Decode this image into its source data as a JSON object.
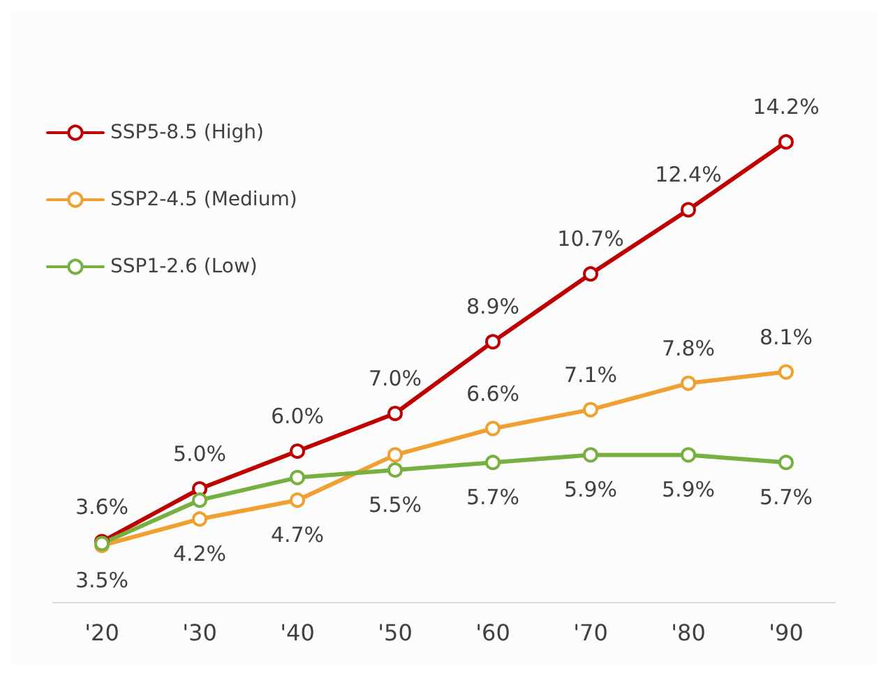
{
  "chart_data": {
    "type": "line",
    "categories": [
      "'20",
      "'30",
      "'40",
      "'50",
      "'60",
      "'70",
      "'80",
      "'90"
    ],
    "series": [
      {
        "name": "SSP5-8.5 (High)",
        "color": "#c00000",
        "values": [
          3.6,
          5.0,
          6.0,
          7.0,
          8.9,
          10.7,
          12.4,
          14.2
        ],
        "value_labels": [
          "3.6%",
          "5.0%",
          "6.0%",
          "7.0%",
          "8.9%",
          "10.7%",
          "12.4%",
          "14.2%"
        ]
      },
      {
        "name": "SSP2-4.5 (Medium)",
        "color": "#f0a030",
        "values": [
          3.5,
          4.2,
          4.7,
          5.9,
          6.6,
          7.1,
          7.8,
          8.1
        ],
        "value_labels": [
          "3.5%",
          "4.2%",
          "4.7%",
          null,
          "6.6%",
          "7.1%",
          "7.8%",
          "8.1%"
        ]
      },
      {
        "name": "SSP1-2.6 (Low)",
        "color": "#77b040",
        "values": [
          3.55,
          4.7,
          5.3,
          5.5,
          5.7,
          5.9,
          5.9,
          5.7
        ],
        "value_labels": [
          null,
          null,
          null,
          "5.5%",
          "5.7%",
          "5.9%",
          "5.9%",
          "5.7%"
        ]
      }
    ],
    "marker": "circle",
    "line_style": "solid",
    "grid": false,
    "legend": "top left"
  }
}
